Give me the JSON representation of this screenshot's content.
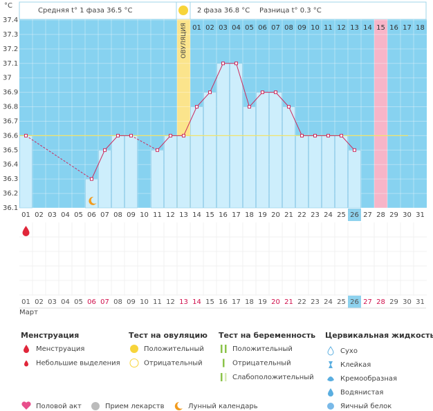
{
  "chart_data": {
    "type": "line",
    "unit": "°C",
    "header": {
      "phase1": "Средняя t° 1 фаза 36.5 °C",
      "phase2": "2 фаза 36.8 °C",
      "difference": "Разница t° 0.3 °C"
    },
    "ovulation_label": "ОВУЛЯЦИЯ",
    "month": "Март",
    "categories": [
      "01",
      "02",
      "03",
      "04",
      "05",
      "06",
      "07",
      "08",
      "09",
      "10",
      "11",
      "12",
      "13",
      "14",
      "15",
      "16",
      "17",
      "18",
      "19",
      "20",
      "21",
      "22",
      "23",
      "24",
      "25",
      "26",
      "27",
      "28",
      "29",
      "30",
      "31"
    ],
    "phase2_days": [
      "01",
      "02",
      "03",
      "04",
      "05",
      "06",
      "07",
      "08",
      "09",
      "10",
      "11",
      "12",
      "13",
      "14",
      "15",
      "16",
      "17",
      "18"
    ],
    "bottom_label_colors": [
      "#555",
      "#555",
      "#555",
      "#555",
      "#555",
      "#d0104c",
      "#d0104c",
      "#555",
      "#555",
      "#555",
      "#555",
      "#555",
      "#d0104c",
      "#d0104c",
      "#555",
      "#555",
      "#555",
      "#555",
      "#555",
      "#d0104c",
      "#d0104c",
      "#555",
      "#555",
      "#555",
      "#555",
      "#555",
      "#d0104c",
      "#d0104c",
      "#555",
      "#555",
      "#555"
    ],
    "series": [
      {
        "name": "Температура",
        "color": "#cc2a5c",
        "values": [
          36.6,
          null,
          null,
          null,
          null,
          36.3,
          36.5,
          36.6,
          36.6,
          null,
          36.5,
          36.6,
          36.6,
          36.8,
          36.9,
          37.1,
          37.1,
          36.8,
          36.9,
          36.9,
          36.8,
          36.6,
          36.6,
          36.6,
          36.6,
          36.5,
          null,
          null,
          null,
          null,
          null
        ]
      }
    ],
    "bar_color": "#cdeefc",
    "coverline": 36.6,
    "coverline_color": "#f2e36a",
    "ylim": [
      36.1,
      37.4
    ],
    "yticks": [
      36.1,
      36.2,
      36.3,
      36.4,
      36.5,
      36.6,
      36.7,
      36.8,
      36.9,
      37,
      37.1,
      37.2,
      37.3,
      37.4
    ],
    "grid": true,
    "legend_groups": [
      {
        "title": "Менструация",
        "items": [
          "Менструация",
          "Небольшие выделения"
        ]
      },
      {
        "title": "Тест на овуляцию",
        "items": [
          "Положительный",
          "Отрицательный"
        ]
      },
      {
        "title": "Тест на беременность",
        "items": [
          "Положительный",
          "Отрицательный",
          "Слабоположительный"
        ]
      },
      {
        "title": "Цервикальная жидкость",
        "items": [
          "Сухо",
          "Клейкая",
          "Кремообразная",
          "Водянистая",
          "Яичный белок"
        ]
      }
    ],
    "bottom_legend": [
      "Половой акт",
      "Прием лекарств",
      "Лунный календарь"
    ]
  }
}
